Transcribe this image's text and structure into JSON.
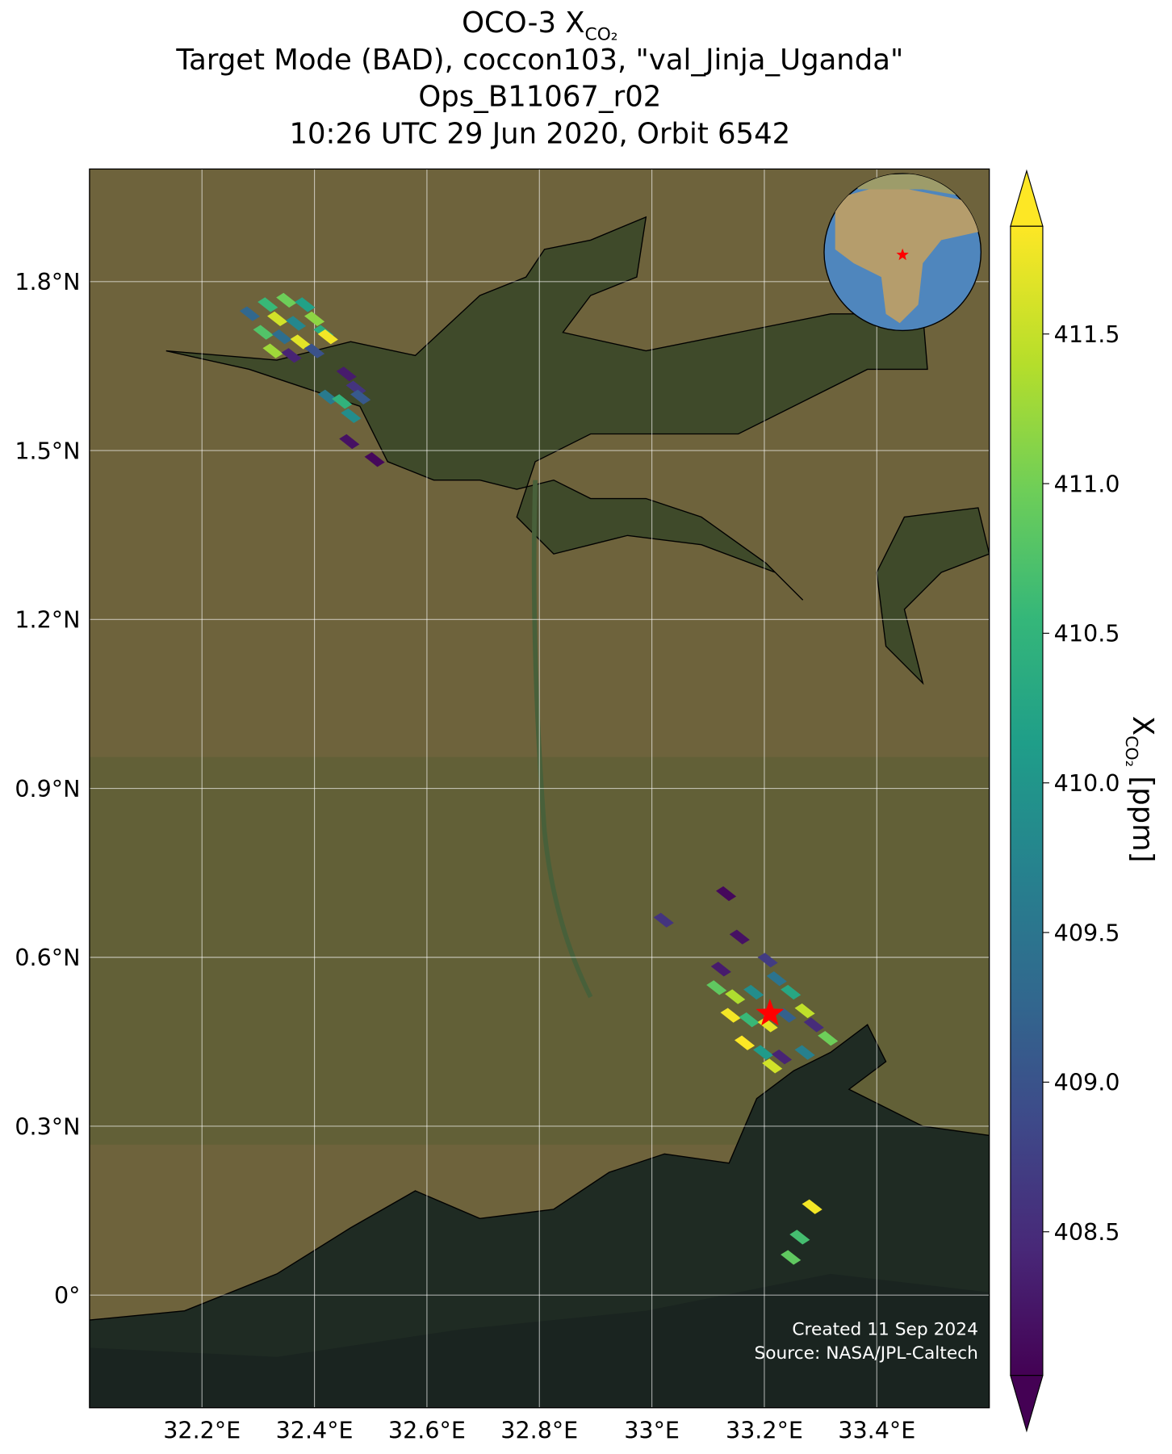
{
  "chart_data": {
    "type": "map",
    "title_lines": [
      {
        "text": "OCO-3 X",
        "sub": "CO₂"
      },
      {
        "text": "Target Mode (BAD), coccon103, \"val_Jinja_Uganda\""
      },
      {
        "text": "Ops_B11067_r02"
      },
      {
        "text": "10:26 UTC 29 Jun 2020, Orbit 6542"
      }
    ],
    "xlim": [
      32.0,
      33.6
    ],
    "ylim": [
      -0.2,
      2.0
    ],
    "xticks": [
      {
        "value": 32.2,
        "label": "32.2°E"
      },
      {
        "value": 32.4,
        "label": "32.4°E"
      },
      {
        "value": 32.6,
        "label": "32.6°E"
      },
      {
        "value": 32.8,
        "label": "32.8°E"
      },
      {
        "value": 33.0,
        "label": "33°E"
      },
      {
        "value": 33.2,
        "label": "33.2°E"
      },
      {
        "value": 33.4,
        "label": "33.4°E"
      }
    ],
    "yticks": [
      {
        "value": 0,
        "label": "0°"
      },
      {
        "value": 0.3,
        "label": "0.3°N"
      },
      {
        "value": 0.6,
        "label": "0.6°N"
      },
      {
        "value": 0.9,
        "label": "0.9°N"
      },
      {
        "value": 1.2,
        "label": "1.2°N"
      },
      {
        "value": 1.5,
        "label": "1.5°N"
      },
      {
        "value": 1.8,
        "label": "1.8°N"
      }
    ],
    "grid": true,
    "target": {
      "lon": 33.21,
      "lat": 0.5,
      "color": "#ff0000"
    },
    "soundings": {
      "lon": [
        32.285,
        32.317,
        32.35,
        32.383,
        32.334,
        32.367,
        32.4,
        32.309,
        32.342,
        32.375,
        32.416,
        32.326,
        32.359,
        32.4,
        32.424,
        32.457,
        32.474,
        32.424,
        32.449,
        32.482,
        32.465,
        32.462,
        32.507,
        33.132,
        33.021,
        33.156,
        33.123,
        33.206,
        33.115,
        33.148,
        33.181,
        33.222,
        33.247,
        33.14,
        33.173,
        33.206,
        33.239,
        33.272,
        33.288,
        33.313,
        33.165,
        33.198,
        33.231,
        33.272,
        33.214,
        33.285,
        33.263,
        33.247
      ],
      "lat": [
        1.743,
        1.759,
        1.767,
        1.759,
        1.734,
        1.726,
        1.734,
        1.71,
        1.702,
        1.693,
        1.71,
        1.677,
        1.669,
        1.677,
        1.702,
        1.636,
        1.611,
        1.595,
        1.587,
        1.595,
        1.562,
        1.516,
        1.484,
        0.713,
        0.666,
        0.636,
        0.579,
        0.595,
        0.546,
        0.53,
        0.538,
        0.562,
        0.538,
        0.497,
        0.489,
        0.48,
        0.497,
        0.505,
        0.48,
        0.456,
        0.448,
        0.431,
        0.423,
        0.431,
        0.407,
        0.157,
        0.103,
        0.067
      ],
      "xco2": [
        409.3,
        410.6,
        411.0,
        410.2,
        411.6,
        409.8,
        411.2,
        410.8,
        409.4,
        411.7,
        410.4,
        411.3,
        408.4,
        409.0,
        411.8,
        408.3,
        408.6,
        409.6,
        410.5,
        409.1,
        409.9,
        408.2,
        408.1,
        408.1,
        408.6,
        408.2,
        408.3,
        408.7,
        410.9,
        411.4,
        409.9,
        409.5,
        410.3,
        411.8,
        410.6,
        411.7,
        409.2,
        411.5,
        408.5,
        411.0,
        411.9,
        410.1,
        408.4,
        409.7,
        411.6,
        411.8,
        410.7,
        410.9
      ]
    },
    "colorbar": {
      "lim": [
        408.02,
        411.86
      ],
      "ticks": [
        408.5,
        {
          "value": 409.0,
          "label": "409.0"
        },
        409.5,
        {
          "value": 410.0,
          "label": "410.0"
        },
        410.5,
        {
          "value": 411.0,
          "label": "411.0"
        },
        411.5
      ],
      "label": {
        "symbol": "X",
        "sub": "CO₂",
        "unit": " [ppm]"
      }
    },
    "annotations": [
      "Created 11 Sep 2024",
      "Source: NASA/JPL-Caltech"
    ]
  }
}
